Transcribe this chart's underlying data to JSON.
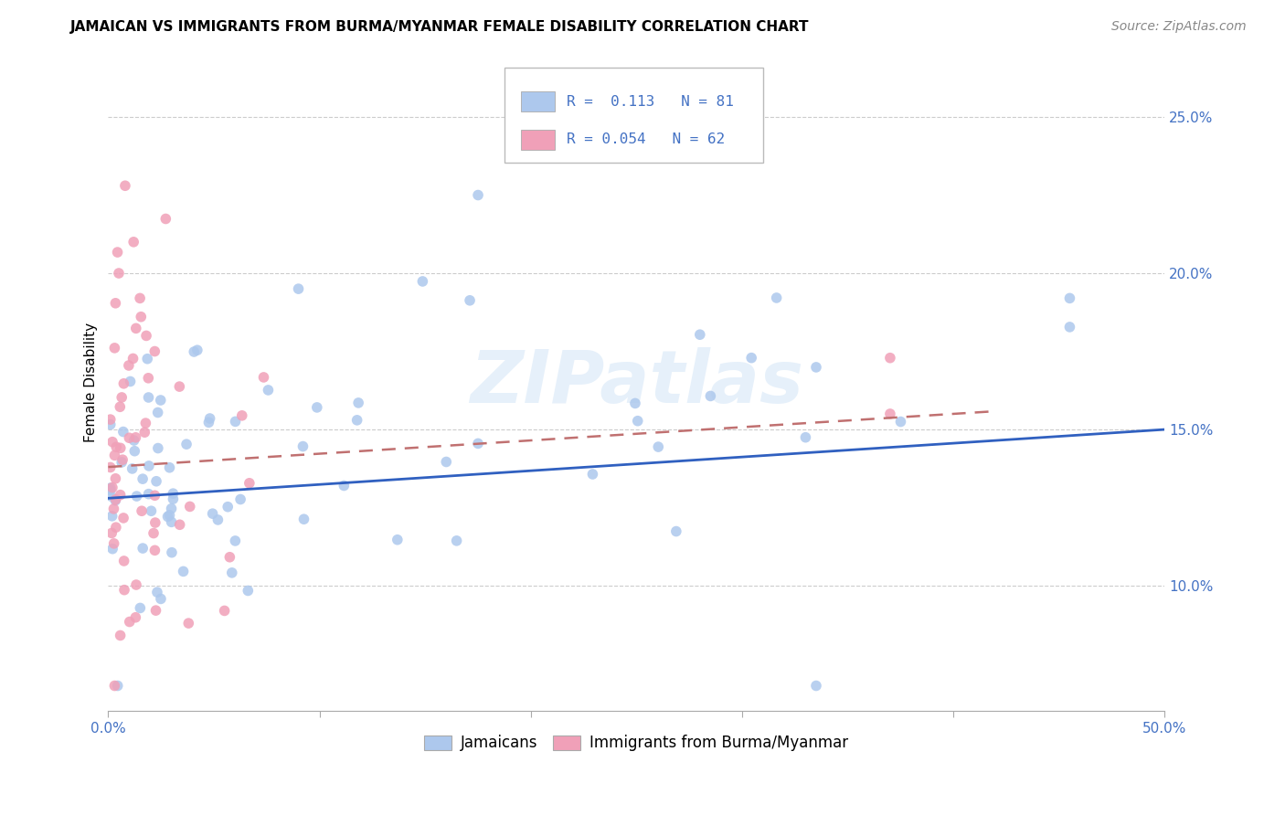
{
  "title": "JAMAICAN VS IMMIGRANTS FROM BURMA/MYANMAR FEMALE DISABILITY CORRELATION CHART",
  "source": "Source: ZipAtlas.com",
  "ylabel": "Female Disability",
  "ytick_values": [
    0.1,
    0.15,
    0.2,
    0.25
  ],
  "ytick_labels": [
    "10.0%",
    "15.0%",
    "20.0%",
    "25.0%"
  ],
  "xtick_values": [
    0.0,
    0.1,
    0.2,
    0.3,
    0.4,
    0.5
  ],
  "xtick_labels": [
    "0.0%",
    "",
    "",
    "",
    "",
    "50.0%"
  ],
  "xlim": [
    0.0,
    0.5
  ],
  "ylim": [
    0.06,
    0.27
  ],
  "legend_label1": "Jamaicans",
  "legend_label2": "Immigrants from Burma/Myanmar",
  "legend_R1": "0.113",
  "legend_N1": "81",
  "legend_R2": "0.054",
  "legend_N2": "62",
  "color_blue": "#adc8ed",
  "color_pink": "#f0a0b8",
  "line_color_blue": "#3060c0",
  "line_color_pink": "#c07070",
  "axis_color": "#4472c4",
  "watermark": "ZIPatlas",
  "title_fontsize": 11,
  "source_fontsize": 10,
  "tick_fontsize": 11
}
